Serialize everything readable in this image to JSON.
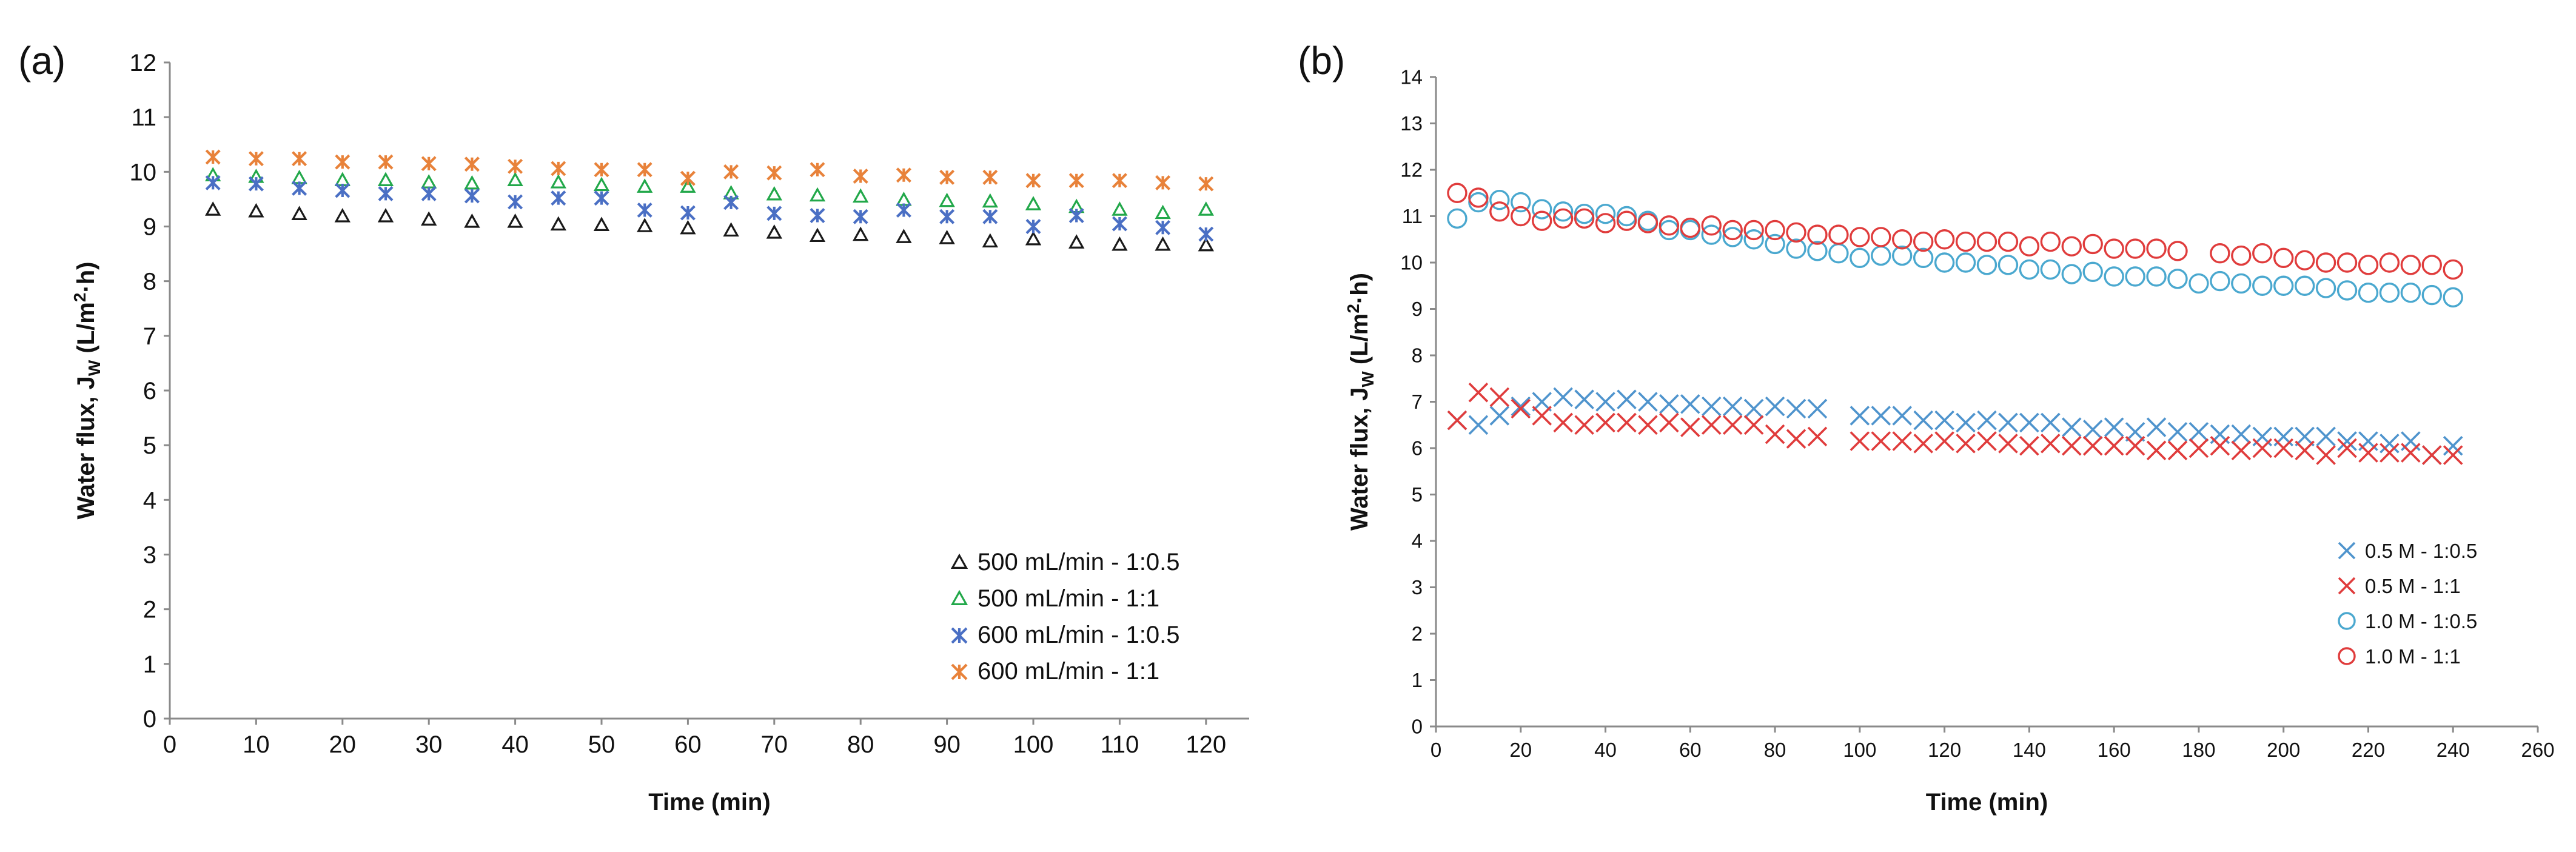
{
  "chart_data": [
    {
      "panel_label": "(a)",
      "type": "scatter",
      "title": "",
      "xlabel": "Time (min)",
      "ylabel_main": "Water flux, J",
      "ylabel_sub": "W",
      "ylabel_units": " (L/m",
      "ylabel_sup": "2",
      "ylabel_tail": "·h)",
      "xlim": [
        0,
        125
      ],
      "ylim": [
        0,
        12
      ],
      "x_ticks": [
        "0",
        "10",
        "20",
        "30",
        "40",
        "50",
        "60",
        "70",
        "80",
        "90",
        "100",
        "110",
        "120"
      ],
      "y_ticks": [
        "0",
        "1",
        "2",
        "3",
        "4",
        "5",
        "6",
        "7",
        "8",
        "9",
        "10",
        "11",
        "12"
      ],
      "legend_position": "bottom-right",
      "x": [
        5,
        10,
        15,
        20,
        25,
        30,
        35,
        40,
        45,
        50,
        55,
        60,
        65,
        70,
        75,
        80,
        85,
        90,
        95,
        100,
        105,
        110,
        115,
        120
      ],
      "series": [
        {
          "name": "500 mL/min - 1:0.5",
          "marker": "triangle",
          "color": "#1a1a1a",
          "values": [
            9.3,
            9.27,
            9.22,
            9.18,
            9.18,
            9.12,
            9.08,
            9.08,
            9.03,
            9.02,
            9.0,
            8.96,
            8.92,
            8.88,
            8.82,
            8.84,
            8.8,
            8.78,
            8.72,
            8.76,
            8.7,
            8.66,
            8.66,
            8.65
          ]
        },
        {
          "name": "500 mL/min - 1:1",
          "marker": "triangle",
          "color": "#22a84a",
          "values": [
            9.93,
            9.9,
            9.88,
            9.84,
            9.84,
            9.8,
            9.78,
            9.84,
            9.8,
            9.75,
            9.72,
            9.72,
            9.6,
            9.58,
            9.56,
            9.54,
            9.48,
            9.46,
            9.45,
            9.4,
            9.35,
            9.3,
            9.24,
            9.3
          ]
        },
        {
          "name": "600 mL/min - 1:0.5",
          "marker": "star",
          "color": "#4a6fc4",
          "values": [
            9.8,
            9.78,
            9.7,
            9.66,
            9.6,
            9.6,
            9.56,
            9.45,
            9.52,
            9.52,
            9.3,
            9.25,
            9.44,
            9.24,
            9.2,
            9.18,
            9.3,
            9.18,
            9.18,
            9.0,
            9.2,
            9.05,
            8.98,
            8.86
          ]
        },
        {
          "name": "600 mL/min - 1:1",
          "marker": "star",
          "color": "#e8823a",
          "values": [
            10.27,
            10.24,
            10.24,
            10.18,
            10.18,
            10.15,
            10.14,
            10.1,
            10.06,
            10.04,
            10.04,
            9.88,
            10.0,
            9.98,
            10.04,
            9.92,
            9.94,
            9.9,
            9.9,
            9.84,
            9.84,
            9.84,
            9.8,
            9.78
          ]
        }
      ]
    },
    {
      "panel_label": "(b)",
      "type": "scatter",
      "title": "",
      "xlabel": "Time (min)",
      "ylabel_main": "Water flux, J",
      "ylabel_sub": "W",
      "ylabel_units": " (L/m",
      "ylabel_sup": "2",
      "ylabel_tail": "·h)",
      "xlim": [
        0,
        260
      ],
      "ylim": [
        0,
        14
      ],
      "x_ticks": [
        "0",
        "20",
        "40",
        "60",
        "80",
        "100",
        "120",
        "140",
        "160",
        "180",
        "200",
        "220",
        "240",
        "260"
      ],
      "y_ticks": [
        "0",
        "1",
        "2",
        "3",
        "4",
        "5",
        "6",
        "7",
        "8",
        "9",
        "10",
        "11",
        "12",
        "13",
        "14"
      ],
      "legend_position": "bottom-right",
      "series": [
        {
          "name": "0.5 M - 1:0.5",
          "marker": "x",
          "color": "#4f94cd",
          "x": [
            5,
            10,
            15,
            20,
            25,
            30,
            35,
            40,
            45,
            50,
            55,
            60,
            65,
            70,
            75,
            80,
            85,
            90,
            100,
            105,
            110,
            115,
            120,
            125,
            130,
            135,
            140,
            145,
            150,
            155,
            160,
            165,
            170,
            175,
            180,
            185,
            190,
            195,
            200,
            205,
            210,
            215,
            220,
            225,
            230,
            235,
            240
          ],
          "values": [
            6.6,
            6.5,
            6.7,
            6.9,
            7.0,
            7.1,
            7.05,
            7.0,
            7.05,
            7.0,
            6.95,
            6.95,
            6.9,
            6.9,
            6.85,
            6.9,
            6.85,
            6.85,
            6.7,
            6.7,
            6.7,
            6.6,
            6.6,
            6.55,
            6.6,
            6.55,
            6.55,
            6.55,
            6.45,
            6.4,
            6.45,
            6.35,
            6.45,
            6.35,
            6.35,
            6.3,
            6.3,
            6.25,
            6.25,
            6.25,
            6.25,
            6.15,
            6.15,
            6.1,
            6.15,
            5.85,
            6.05
          ]
        },
        {
          "name": "0.5 M - 1:1",
          "marker": "x",
          "color": "#e03c3c",
          "x": [
            5,
            10,
            15,
            20,
            25,
            30,
            35,
            40,
            45,
            50,
            55,
            60,
            65,
            70,
            75,
            80,
            85,
            90,
            100,
            105,
            110,
            115,
            120,
            125,
            130,
            135,
            140,
            145,
            150,
            155,
            160,
            165,
            170,
            175,
            180,
            185,
            190,
            195,
            200,
            205,
            210,
            215,
            220,
            225,
            230,
            235,
            240
          ],
          "values": [
            6.6,
            7.2,
            7.1,
            6.85,
            6.7,
            6.55,
            6.5,
            6.55,
            6.55,
            6.5,
            6.55,
            6.45,
            6.5,
            6.5,
            6.5,
            6.3,
            6.2,
            6.25,
            6.15,
            6.15,
            6.15,
            6.1,
            6.15,
            6.1,
            6.15,
            6.1,
            6.05,
            6.1,
            6.05,
            6.05,
            6.05,
            6.05,
            5.95,
            5.95,
            6.0,
            6.05,
            5.95,
            6.0,
            6.0,
            5.95,
            5.85,
            6.0,
            5.9,
            5.9,
            5.9,
            5.85,
            5.85
          ]
        },
        {
          "name": "1.0 M - 1:0.5",
          "marker": "circle",
          "color": "#4aa8cf",
          "x": [
            5,
            10,
            15,
            20,
            25,
            30,
            35,
            40,
            45,
            50,
            55,
            60,
            65,
            70,
            75,
            80,
            85,
            90,
            95,
            100,
            105,
            110,
            115,
            120,
            125,
            130,
            135,
            140,
            145,
            150,
            155,
            160,
            165,
            170,
            175,
            180,
            185,
            190,
            195,
            200,
            205,
            210,
            215,
            220,
            225,
            230,
            235,
            240
          ],
          "values": [
            10.95,
            11.3,
            11.35,
            11.3,
            11.15,
            11.1,
            11.05,
            11.05,
            11.0,
            10.9,
            10.7,
            10.7,
            10.6,
            10.55,
            10.5,
            10.4,
            10.3,
            10.25,
            10.2,
            10.1,
            10.15,
            10.15,
            10.1,
            10.0,
            10.0,
            9.95,
            9.95,
            9.85,
            9.85,
            9.75,
            9.8,
            9.7,
            9.7,
            9.7,
            9.65,
            9.55,
            9.6,
            9.55,
            9.5,
            9.5,
            9.5,
            9.45,
            9.4,
            9.35,
            9.35,
            9.35,
            9.3,
            9.25
          ]
        },
        {
          "name": "1.0 M - 1:1",
          "marker": "circle",
          "color": "#e03c3c",
          "x": [
            5,
            10,
            15,
            20,
            25,
            30,
            35,
            40,
            45,
            50,
            55,
            60,
            65,
            70,
            75,
            80,
            85,
            90,
            95,
            100,
            105,
            110,
            115,
            120,
            125,
            130,
            135,
            140,
            145,
            150,
            155,
            160,
            165,
            170,
            175,
            185,
            190,
            195,
            200,
            205,
            210,
            215,
            220,
            225,
            230,
            235,
            240
          ],
          "values": [
            11.5,
            11.4,
            11.1,
            11.0,
            10.9,
            10.95,
            10.95,
            10.85,
            10.9,
            10.85,
            10.8,
            10.75,
            10.8,
            10.7,
            10.7,
            10.7,
            10.65,
            10.6,
            10.6,
            10.55,
            10.55,
            10.5,
            10.45,
            10.5,
            10.45,
            10.45,
            10.45,
            10.35,
            10.45,
            10.35,
            10.4,
            10.3,
            10.3,
            10.3,
            10.25,
            10.2,
            10.15,
            10.2,
            10.1,
            10.05,
            10.0,
            10.0,
            9.95,
            10.0,
            9.95,
            9.95,
            9.85
          ]
        }
      ]
    }
  ]
}
